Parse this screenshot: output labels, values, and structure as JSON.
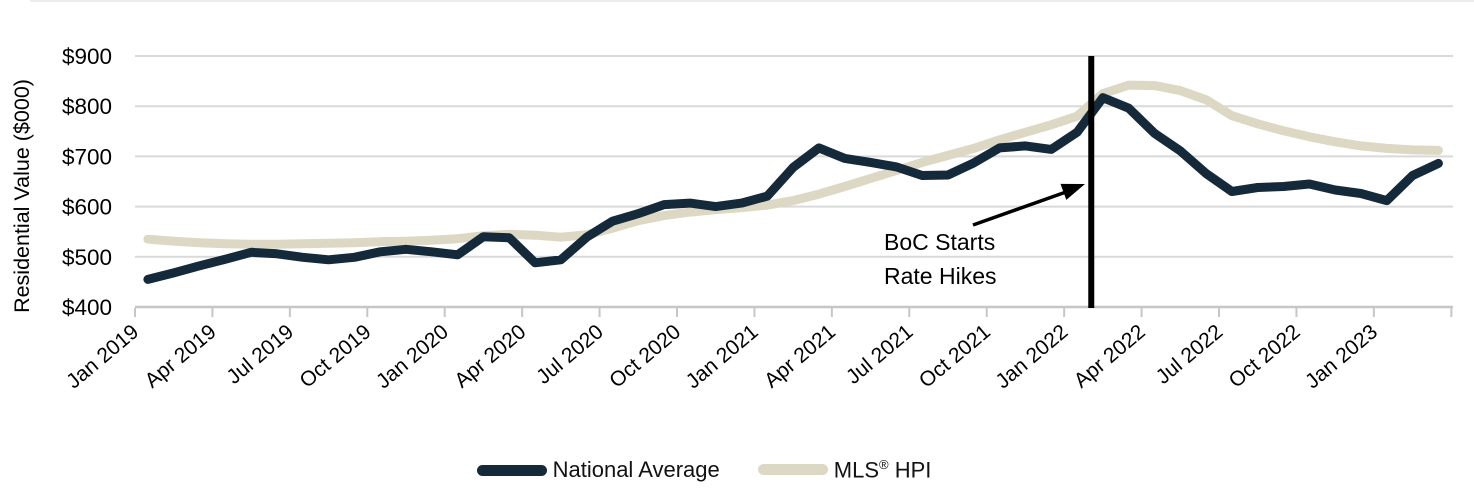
{
  "chart_data": {
    "type": "line",
    "title": "",
    "ylabel": "Residential Value ($000)",
    "ylim": [
      400,
      900
    ],
    "y_tick_step": 100,
    "y_tick_labels": [
      "$900",
      "$800",
      "$700",
      "$600",
      "$500",
      "$400"
    ],
    "x_unit": "month",
    "x_range": [
      "Jan 2019",
      "Mar 2023"
    ],
    "x_tick_labels": [
      "Jan 2019",
      "Apr 2019",
      "Jul 2019",
      "Oct 2019",
      "Jan 2020",
      "Apr 2020",
      "Jul 2020",
      "Oct 2020",
      "Jan 2021",
      "Apr 2021",
      "Jul 2021",
      "Oct 2021",
      "Jan 2022",
      "Apr 2022",
      "Jul 2022",
      "Oct 2022",
      "Jan 2023"
    ],
    "x_tick_interval_months": 3,
    "grid": "horizontal",
    "legend_position": "bottom",
    "series": [
      {
        "name": "National Average",
        "color": "#14293a",
        "values": [
          455,
          468,
          482,
          495,
          509,
          506,
          499,
          494,
          499,
          510,
          515,
          510,
          504,
          540,
          538,
          488,
          494,
          539,
          571,
          586,
          604,
          607,
          600,
          607,
          621,
          678,
          717,
          696,
          688,
          679,
          662,
          663,
          687,
          717,
          721,
          714,
          748,
          817,
          796,
          746,
          711,
          666,
          630,
          638,
          640,
          645,
          633,
          626,
          612,
          662,
          686
        ]
      },
      {
        "name": "MLS® HPI",
        "color": "#ddd8c3",
        "values": [
          535,
          531,
          528,
          526,
          525,
          525,
          526,
          527,
          528,
          530,
          531,
          533,
          536,
          542,
          545,
          543,
          539,
          544,
          557,
          572,
          582,
          589,
          594,
          598,
          603,
          612,
          625,
          640,
          656,
          672,
          688,
          702,
          716,
          733,
          748,
          763,
          780,
          825,
          842,
          841,
          831,
          813,
          781,
          765,
          751,
          739,
          729,
          721,
          716,
          713,
          712
        ]
      }
    ],
    "annotations": [
      {
        "type": "vline",
        "x": "Feb 2022",
        "x_index": 36.55,
        "color": "#000000"
      },
      {
        "type": "label-arrow",
        "lines": [
          "BoC Starts",
          "Rate Hikes"
        ],
        "points_to": "Feb 2022",
        "color": "#000000"
      }
    ]
  },
  "colors": {
    "gridline": "#d9d9d9",
    "axis": "#c6c6c6",
    "tick_text": "#000000",
    "annotation": "#000000"
  }
}
